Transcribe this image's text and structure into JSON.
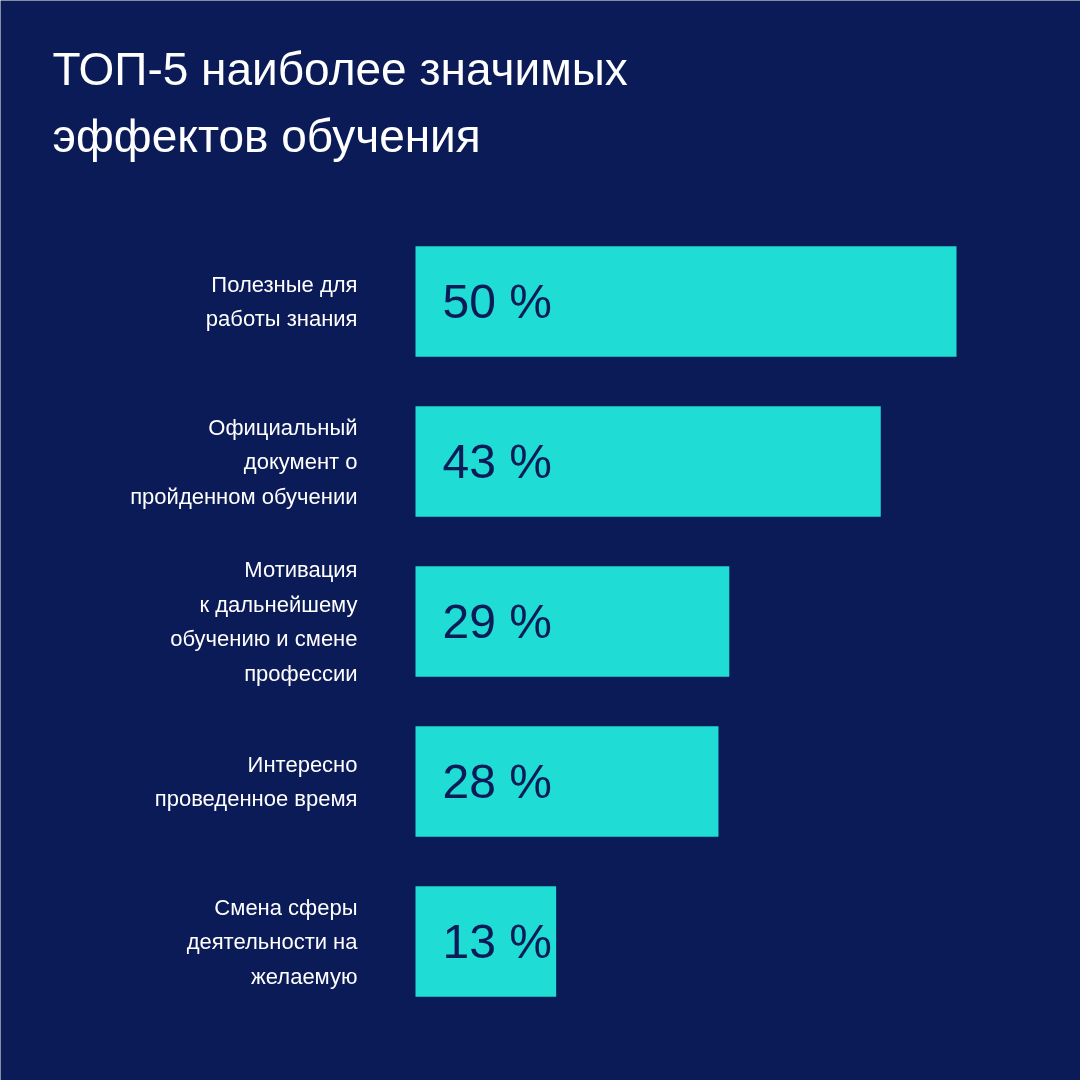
{
  "chart_data": {
    "type": "bar",
    "orientation": "horizontal",
    "title": "ТОП-5 наиболее значимых\nэффектов обучения",
    "categories": [
      "Полезные для\nработы знания",
      "Официальный\nдокумент о\nпройденном обучении",
      "Мотивация\nк дальнейшему\nобучению и смене\nпрофессии",
      "Интересно\nпроведенное время",
      "Смена сферы\nдеятельности на\nжелаемую"
    ],
    "values": [
      50,
      43,
      29,
      28,
      13
    ],
    "value_labels": [
      "50 %",
      "43 %",
      "29 %",
      "28 %",
      "13 %"
    ],
    "color": "#1fdcd5"
  }
}
